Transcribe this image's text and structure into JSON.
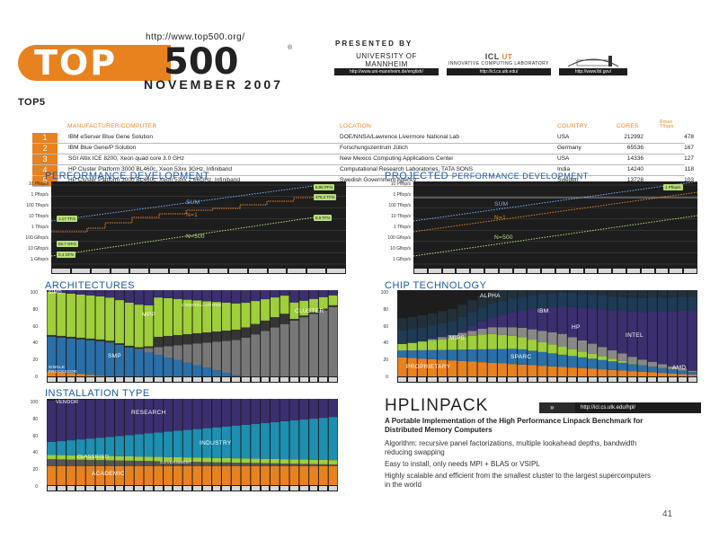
{
  "header": {
    "url": "http://www.top500.org/",
    "logo_left": "TOP",
    "logo_right": "500",
    "logo_reg": "®",
    "edition": "NOVEMBER 2007",
    "presented_by": "PRESENTED BY",
    "sponsors": [
      {
        "name": "UNIVERSITY OF MANNHEIM",
        "url": "http://www.uni-mannheim.de/english/"
      },
      {
        "name_mark": "ICL",
        "name_ut": "UT",
        "name_sub": "INNOVATIVE COMPUTING LABORATORY",
        "url": "http://icl.cs.utk.edu/"
      },
      {
        "name": "",
        "url": "http://www.lbl.gov/"
      }
    ]
  },
  "top5": {
    "title_prefix": "TOP",
    "title_num": "5",
    "headers": {
      "manufacturer": "MANUFACTURER/COMPUTER",
      "location": "LOCATION",
      "country": "COUNTRY",
      "cores": "CORES",
      "rmax": "Rmax Tflops"
    },
    "rows": [
      {
        "rank": "1",
        "computer": "IBM eServer Blue Gene Solution",
        "location": "DOE/NNSA/Lawrence Livermore National Lab",
        "country": "USA",
        "cores": "212992",
        "rmax": "478"
      },
      {
        "rank": "2",
        "computer": "IBM Blue Gene/P Solution",
        "location": "Forschungszentrum Jülich",
        "country": "Germany",
        "cores": "65536",
        "rmax": "167"
      },
      {
        "rank": "3",
        "computer": "SGI Altix ICE 8200, Xeon quad core 3.0 GHz",
        "location": "New Mexico Computing Applications Center",
        "country": "USA",
        "cores": "14336",
        "rmax": "127"
      },
      {
        "rank": "4",
        "computer": "HP Cluster Platform 3000 BL460c, Xeon 53xx 3GHz, Infiniband",
        "location": "Computational Research Laboratories, TATA SONS",
        "country": "India",
        "cores": "14240",
        "rmax": "118"
      },
      {
        "rank": "5",
        "computer": "HP Cluster Platform 3000 BL460c, Xeon 53xx 2.66GHz, Infiniband",
        "location": "Swedish Government Agency",
        "country": "Sweden",
        "cores": "13728",
        "rmax": "103"
      }
    ]
  },
  "sections": {
    "performance": "PERFORMANCE DEVELOPMENT",
    "projected_a": "PROJECTED",
    "projected_b": "PERFORMANCE DEVELOPMENT",
    "architectures": "ARCHITECTURES",
    "chip": "CHIP TECHNOLOGY",
    "installation": "INSTALLATION TYPE"
  },
  "perf": {
    "y_ticks": [
      "10 Pflop/s",
      "1 Pflop/s",
      "100 Tflop/s",
      "10 Tflop/s",
      "1 Tflop/s",
      "100 Gflop/s",
      "10 Gflop/s",
      "1 Gflop/s"
    ],
    "labels": {
      "sum": "SUM",
      "n1": "N=1",
      "n500": "N=500"
    },
    "flags": {
      "sum": "6.96 PF/s",
      "n1": "478.2 TF/s",
      "n500": "5.9 TF/s",
      "left1": "1.17 TF/s",
      "left2": "59.7 GF/s",
      "left3": "0.4 GF/s"
    }
  },
  "proj": {
    "y_ticks": [
      "10 Pflop/s",
      "1 Pflop/s",
      "100 Tflop/s",
      "10 Tflop/s",
      "1 Tflop/s",
      "100 Gflop/s",
      "10 Gflop/s",
      "1 Gflop/s"
    ],
    "labels": {
      "sum": "SUM",
      "n1": "N=1",
      "n500": "N=500"
    },
    "flag": "1 Pflop/s"
  },
  "arch": {
    "y_ticks": [
      "100",
      "80",
      "60",
      "40",
      "20",
      "0"
    ],
    "labels": {
      "simd": "SIMD",
      "mpp": "MPP",
      "smp": "SMP",
      "constellations": "CONSTELLATIONS",
      "cluster": "CLUSTER",
      "single": "SINGLE PROCESSOR"
    }
  },
  "chip": {
    "y_ticks": [
      "100",
      "80",
      "60",
      "40",
      "20",
      "0"
    ],
    "labels": {
      "alpha": "ALPHA",
      "ibm": "IBM",
      "hp": "HP",
      "mips": "MIPS",
      "sparc": "SPARC",
      "intel": "INTEL",
      "proprietary": "PROPRIETARY",
      "amd": "AMD"
    }
  },
  "install": {
    "y_ticks": [
      "100",
      "80",
      "60",
      "40",
      "20",
      "0"
    ],
    "labels": {
      "vendor": "VENDOR",
      "research": "RESEARCH",
      "industry": "INDUSTRY",
      "classified": "CLASSIFIED",
      "government": "GOVERNMENT",
      "academic": "ACADEMIC"
    }
  },
  "hpl": {
    "title": "HPLINPACK",
    "url": "http://icl.cs.utk.edu/hpl/",
    "subtitle": "A Portable Implementation of the High Performance Linpack Benchmark for Distributed Memory Computers",
    "p1": "Algorithm: recursive panel factorizations, multiple lookahead depths, bandwidth reducing swapping",
    "p2": "Easy to install, only needs MPI + BLAS or VSIPL",
    "p3": "Highly scalable and efficient from the smallest cluster to the largest supercomputers in the world"
  },
  "colors": {
    "accent": "#e8821e",
    "title_blue": "#1a5aa8"
  },
  "page_number": "41"
}
